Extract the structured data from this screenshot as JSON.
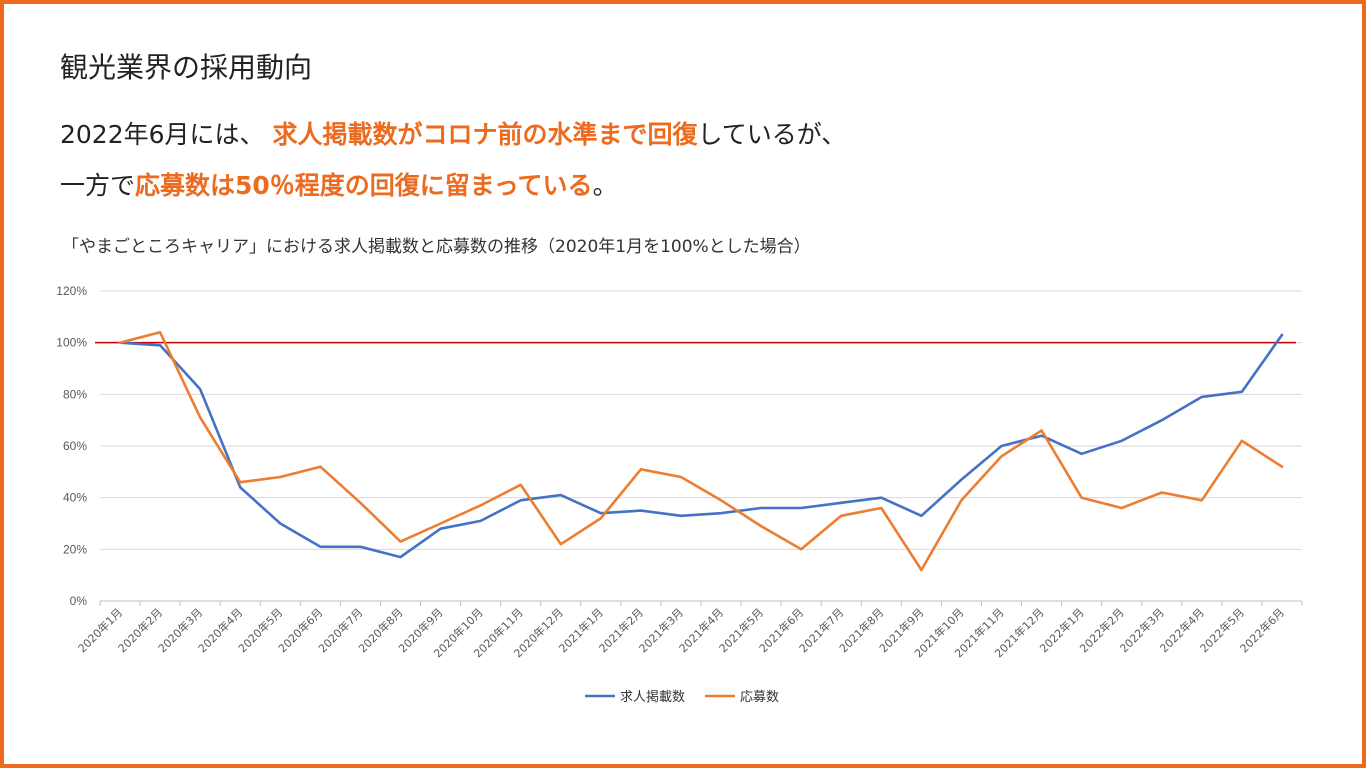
{
  "page": {
    "title": "観光業界の採用動向",
    "headline1": {
      "pre": "2022年6月には、",
      "highlight": "求人掲載数がコロナ前の水準まで回復",
      "post": "しているが、"
    },
    "headline2": {
      "pre": "一方で",
      "highlight": "応募数は50％程度の回復に留まっている",
      "post": "。"
    },
    "accent_color": "#ED6B1F"
  },
  "chart_data": {
    "type": "line",
    "title": "「やまごところキャリア」における求人掲載数と応募数の推移（2020年1月を100%とした場合）",
    "categories": [
      "2020年1月",
      "2020年2月",
      "2020年3月",
      "2020年4月",
      "2020年5月",
      "2020年6月",
      "2020年7月",
      "2020年8月",
      "2020年9月",
      "2020年10月",
      "2020年11月",
      "2020年12月",
      "2021年1月",
      "2021年2月",
      "2021年3月",
      "2021年4月",
      "2021年5月",
      "2021年6月",
      "2021年7月",
      "2021年8月",
      "2021年9月",
      "2021年10月",
      "2021年11月",
      "2021年12月",
      "2022年1月",
      "2022年2月",
      "2022年3月",
      "2022年4月",
      "2022年5月",
      "2022年6月"
    ],
    "series": [
      {
        "name": "求人掲載数",
        "color": "#4472C4",
        "values": [
          100,
          99,
          82,
          44,
          30,
          21,
          21,
          17,
          28,
          31,
          39,
          41,
          34,
          35,
          33,
          34,
          36,
          36,
          38,
          40,
          33,
          47,
          60,
          64,
          57,
          62,
          70,
          79,
          81,
          103
        ]
      },
      {
        "name": "応募数",
        "color": "#ED7D31",
        "values": [
          100,
          104,
          71,
          46,
          48,
          52,
          38,
          23,
          30,
          37,
          45,
          22,
          32,
          51,
          48,
          39,
          29,
          20,
          33,
          36,
          12,
          39,
          56,
          66,
          40,
          36,
          42,
          39,
          62,
          52
        ]
      }
    ],
    "reference_line": {
      "value": 100,
      "color": "#C00000"
    },
    "ylim": [
      0,
      120
    ],
    "y_ticks": [
      "0%",
      "20%",
      "40%",
      "60%",
      "80%",
      "100%",
      "120%"
    ],
    "y_tick_values": [
      0,
      20,
      40,
      60,
      80,
      100,
      120
    ],
    "grid": true,
    "legend_position": "bottom"
  }
}
